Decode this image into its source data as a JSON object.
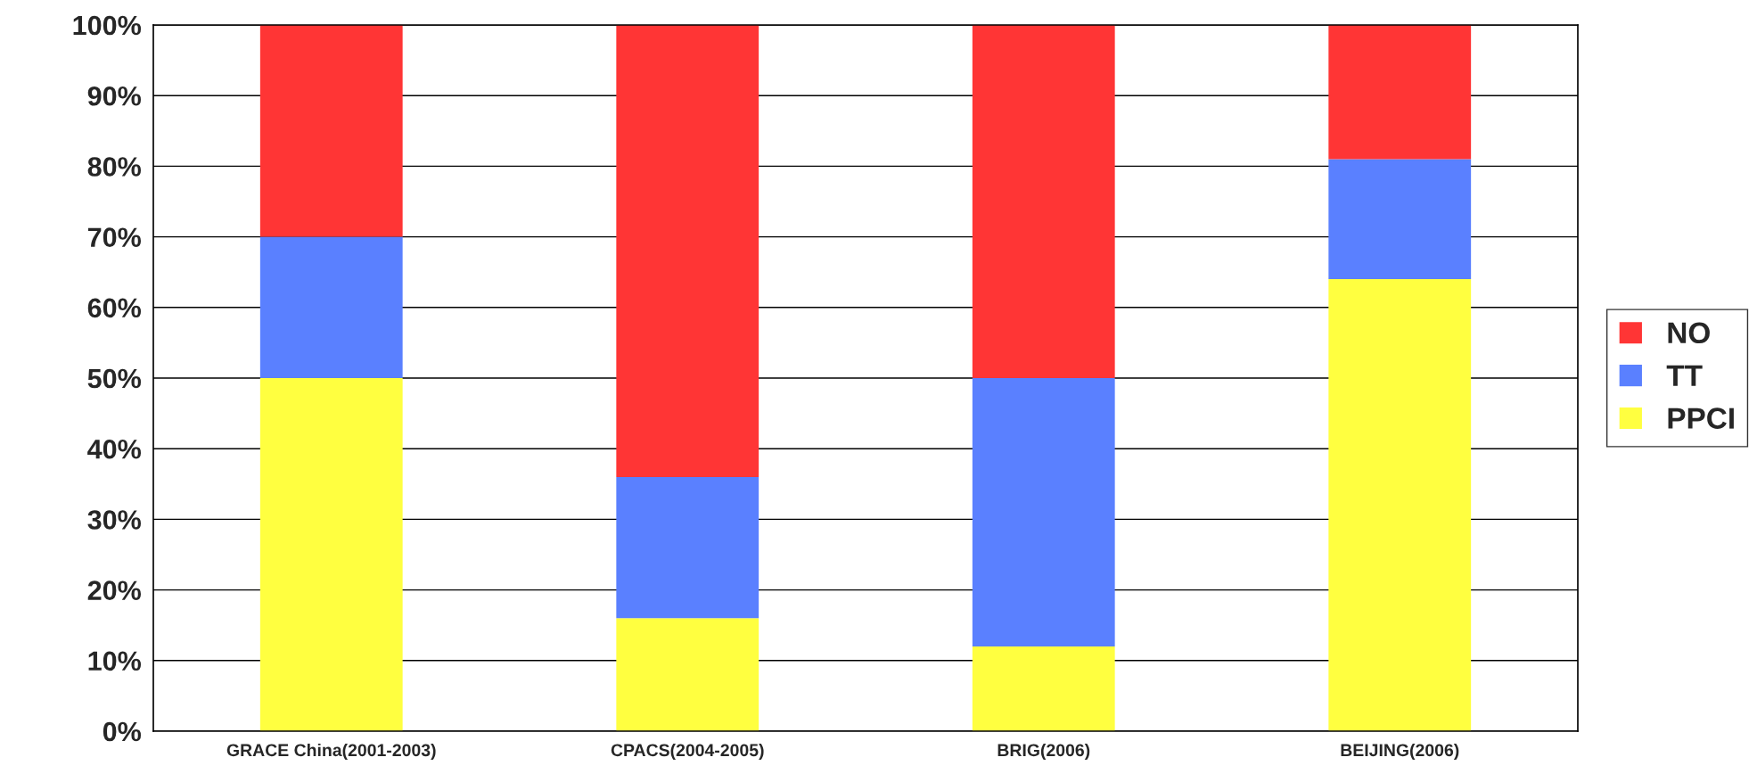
{
  "chart_data": {
    "type": "bar",
    "stacked": true,
    "categories": [
      "GRACE China(2001-2003)",
      "CPACS(2004-2005)",
      "BRIG(2006)",
      "BEIJING(2006)"
    ],
    "series": [
      {
        "name": "PPCI",
        "color": "#ffff40",
        "values": [
          50,
          16,
          12,
          64
        ]
      },
      {
        "name": "TT",
        "color": "#5a80ff",
        "values": [
          20,
          20,
          38,
          17
        ]
      },
      {
        "name": "NO",
        "color": "#ff3535",
        "values": [
          30,
          64,
          50,
          19
        ]
      }
    ],
    "ylim": [
      0,
      100
    ],
    "yticks": [
      {
        "value": 0,
        "label": "0%"
      },
      {
        "value": 10,
        "label": "10%"
      },
      {
        "value": 20,
        "label": "20%"
      },
      {
        "value": 30,
        "label": "30%"
      },
      {
        "value": 40,
        "label": "40%"
      },
      {
        "value": 50,
        "label": "50%"
      },
      {
        "value": 60,
        "label": "60%"
      },
      {
        "value": 70,
        "label": "70%"
      },
      {
        "value": 80,
        "label": "80%"
      },
      {
        "value": 90,
        "label": "90%"
      },
      {
        "value": 100,
        "label": "100%"
      }
    ],
    "grid": "y",
    "legend": "right"
  }
}
